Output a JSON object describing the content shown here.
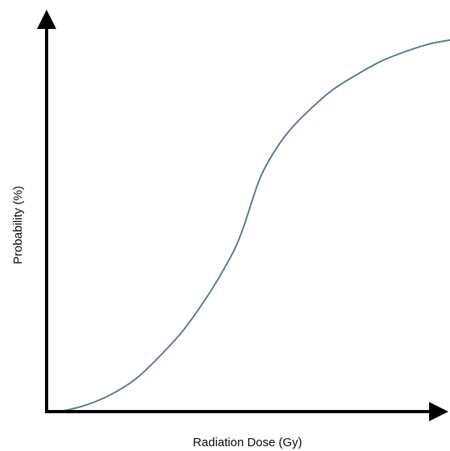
{
  "chart_data": {
    "type": "line",
    "title": "",
    "xlabel": "Radiation Dose (Gy)",
    "ylabel": "Probability (%)",
    "xlim": [
      0,
      1
    ],
    "ylim": [
      0,
      1
    ],
    "grid": false,
    "ticks": false,
    "series": [
      {
        "color": "#5b7ea6",
        "x": [
          0.0,
          0.04,
          0.1,
          0.16,
          0.22,
          0.28,
          0.34,
          0.4,
          0.44,
          0.47,
          0.49,
          0.51,
          0.53,
          0.56,
          0.6,
          0.65,
          0.71,
          0.77,
          0.83,
          0.89,
          0.95,
          1.0
        ],
        "y": [
          0.0,
          0.002,
          0.018,
          0.045,
          0.085,
          0.145,
          0.215,
          0.305,
          0.375,
          0.435,
          0.49,
          0.555,
          0.615,
          0.675,
          0.735,
          0.79,
          0.845,
          0.885,
          0.92,
          0.945,
          0.965,
          0.975
        ]
      }
    ]
  },
  "colors": {
    "axis": "#000000",
    "curve": "#5b7ea6",
    "background": "#ffffff"
  }
}
